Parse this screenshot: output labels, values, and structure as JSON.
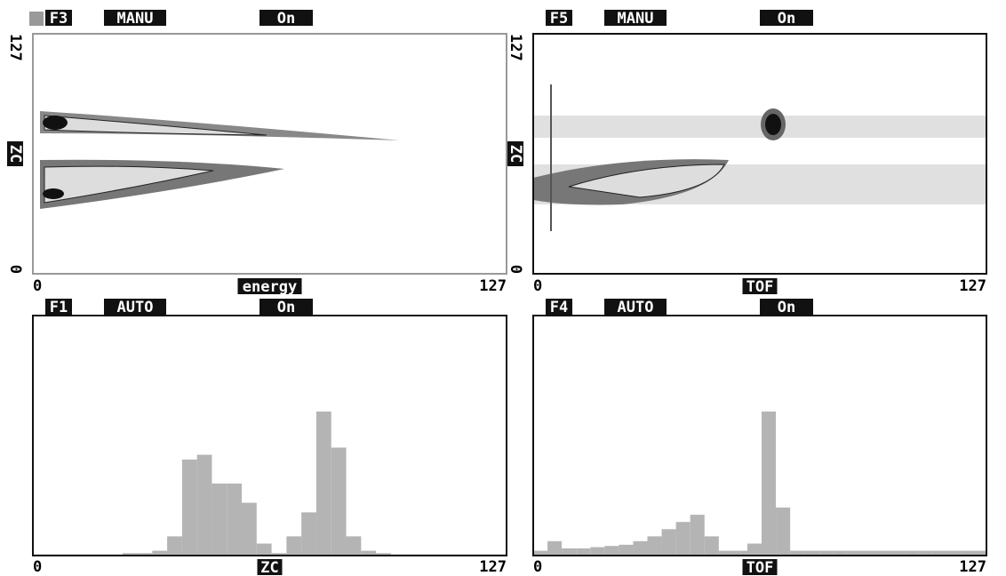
{
  "chart_data": [
    {
      "type": "density",
      "function_key": "F3",
      "mode": "MANU",
      "status": "On",
      "xlabel": "energy",
      "ylabel": "ZC",
      "xlim": [
        0,
        127
      ],
      "xticks": [
        0,
        127
      ],
      "ylim": [
        0,
        127
      ],
      "yticks": [
        0,
        127
      ]
    },
    {
      "type": "density",
      "function_key": "F5",
      "mode": "MANU",
      "status": "On",
      "xlabel": "TOF",
      "ylabel": "ZC",
      "xlim": [
        0,
        127
      ],
      "xticks": [
        0,
        127
      ],
      "ylim": [
        0,
        127
      ],
      "yticks": [
        0,
        127
      ]
    },
    {
      "type": "histogram",
      "function_key": "F1",
      "mode": "AUTO",
      "status": "On",
      "xlabel": "ZC",
      "color": "#b4b4b4",
      "xlim": [
        0,
        127
      ],
      "xticks": [
        0,
        127
      ],
      "ylim": [
        0,
        100
      ],
      "bins": [
        0,
        4,
        8,
        12,
        16,
        20,
        24,
        28,
        32,
        36,
        40,
        44,
        48,
        52,
        56,
        60,
        64,
        68,
        72,
        76,
        80,
        84,
        88,
        92,
        96,
        100,
        104,
        108,
        112,
        116,
        120,
        124,
        128
      ],
      "values": [
        0.5,
        0.5,
        0.5,
        0.5,
        0.5,
        0.5,
        1,
        1,
        2,
        8,
        40,
        42,
        30,
        30,
        22,
        5,
        1,
        8,
        18,
        60,
        45,
        8,
        2,
        1,
        0.5,
        0.5,
        0.5,
        0.5,
        0.5,
        0.5,
        0.5,
        0.5
      ]
    },
    {
      "type": "histogram",
      "function_key": "F4",
      "mode": "AUTO",
      "status": "On",
      "xlabel": "TOF",
      "color": "#b4b4b4",
      "xlim": [
        0,
        127
      ],
      "xticks": [
        0,
        127
      ],
      "ylim": [
        0,
        100
      ],
      "bins": [
        0,
        4,
        8,
        12,
        16,
        20,
        24,
        28,
        32,
        36,
        40,
        44,
        48,
        52,
        56,
        60,
        64,
        68,
        72,
        76,
        80,
        84,
        88,
        92,
        96,
        100,
        104,
        108,
        112,
        116,
        120,
        124,
        128
      ],
      "values": [
        2,
        6,
        3,
        3,
        3.5,
        4,
        4.5,
        6,
        8,
        11,
        14,
        17,
        8,
        2,
        2,
        5,
        60,
        20,
        2,
        2,
        2,
        2,
        2,
        2,
        2,
        2,
        2,
        2,
        2,
        2,
        2,
        2
      ]
    }
  ]
}
